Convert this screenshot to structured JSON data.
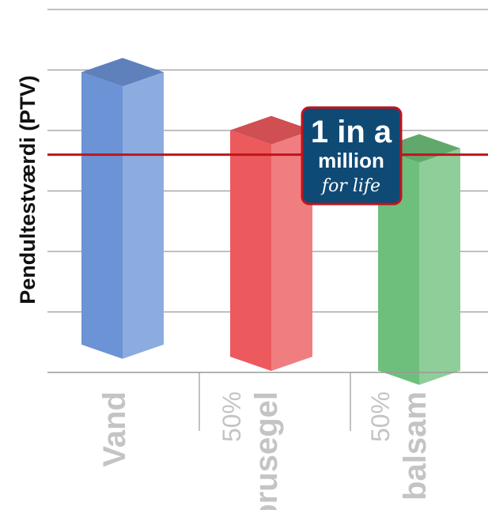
{
  "chart_data": {
    "type": "bar",
    "ylabel": "Pendultestværdi (PTV)",
    "categories": [
      {
        "prefix": "",
        "label": "Vand"
      },
      {
        "prefix": "50%",
        "label": "brusegel"
      },
      {
        "prefix": "50%",
        "label": "balsam"
      }
    ],
    "values": [
      52,
      42.4,
      39.4
    ],
    "bar_bottoms": [
      4.6,
      2.6,
      0.3
    ],
    "ylim": [
      0,
      60
    ],
    "yticks": [
      0,
      10,
      20,
      30,
      40,
      50,
      60
    ],
    "grid": true,
    "threshold": 36,
    "threshold_color": "#c0141c",
    "colors": [
      "#6b93d6",
      "#ec5a5e",
      "#6fbf7c"
    ],
    "badge": {
      "line1": "1 in a",
      "line2": "million",
      "line3": "for life",
      "color": "#0f4a75",
      "border": "#c0141c"
    }
  }
}
